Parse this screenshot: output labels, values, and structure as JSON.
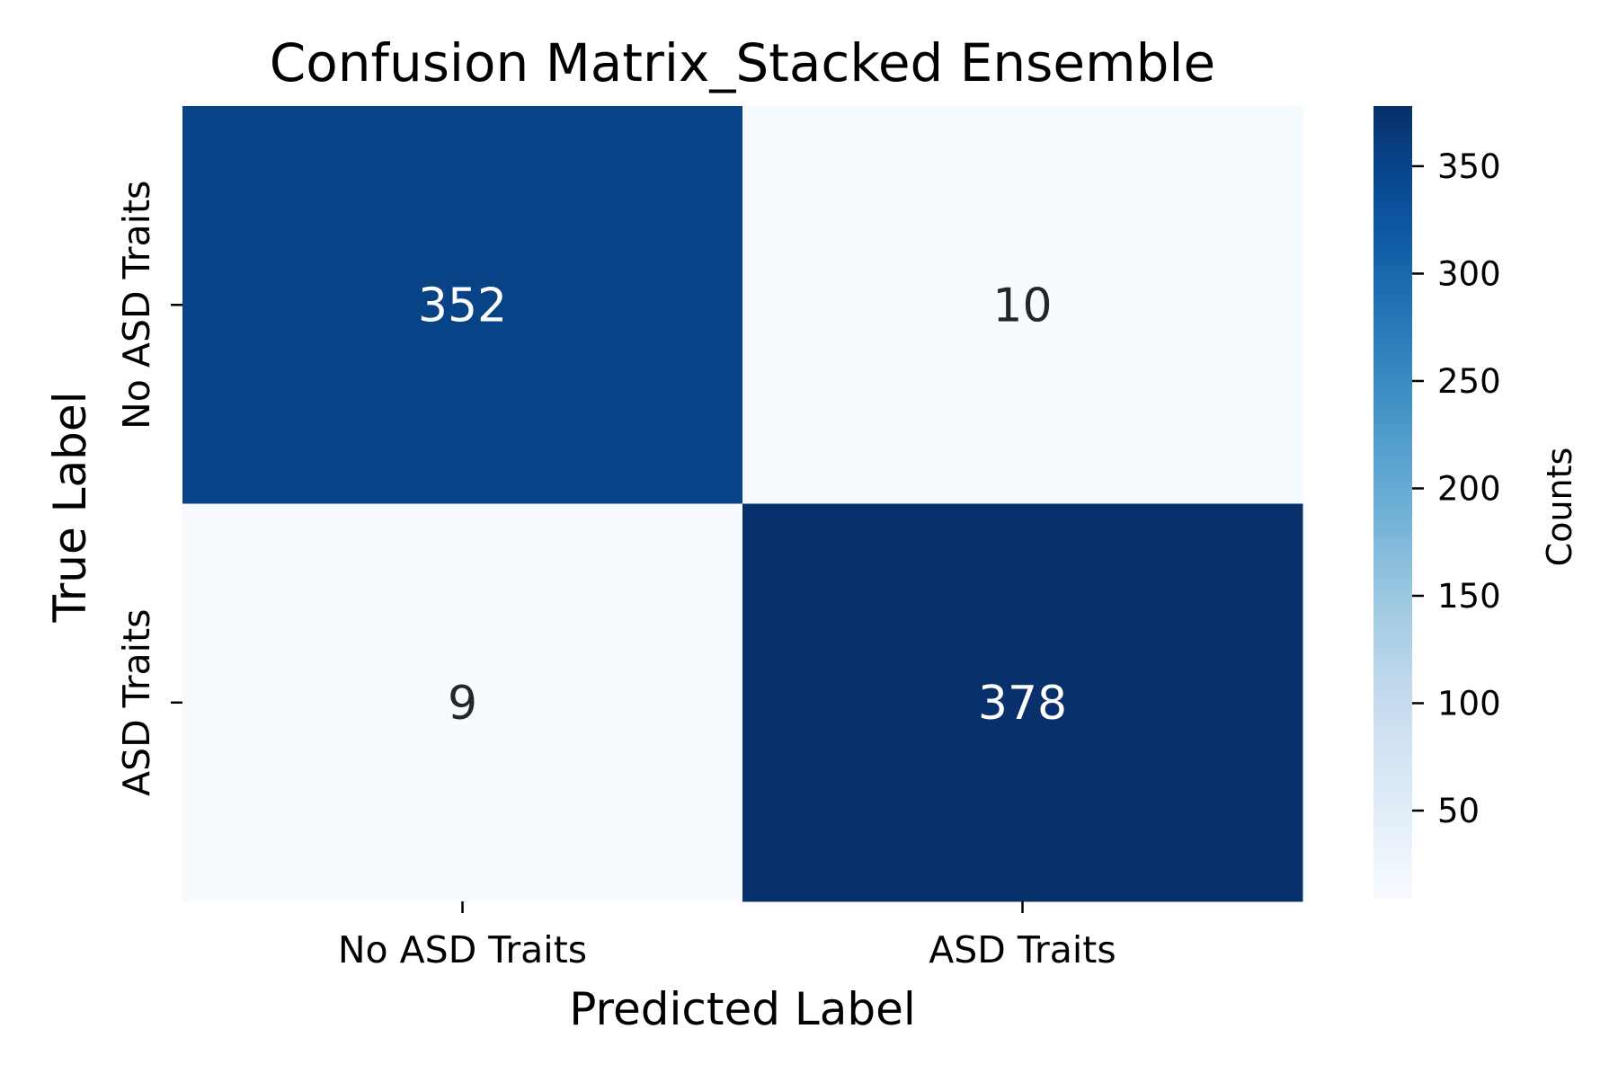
{
  "chart_data": {
    "type": "heatmap",
    "title": "Confusion Matrix_Stacked Ensemble",
    "xlabel": "Predicted Label",
    "ylabel": "True Label",
    "x_categories": [
      "No ASD Traits",
      "ASD Traits"
    ],
    "y_categories": [
      "No ASD Traits",
      "ASD Traits"
    ],
    "values": [
      [
        352,
        10
      ],
      [
        9,
        378
      ]
    ],
    "colormap": "Blues",
    "colorbar": {
      "label": "Counts",
      "min": 9,
      "max": 378,
      "ticks": [
        50,
        100,
        150,
        200,
        250,
        300,
        350
      ]
    },
    "annotation_colors": {
      "on_dark": "#ffffff",
      "on_light": "#262626"
    }
  }
}
